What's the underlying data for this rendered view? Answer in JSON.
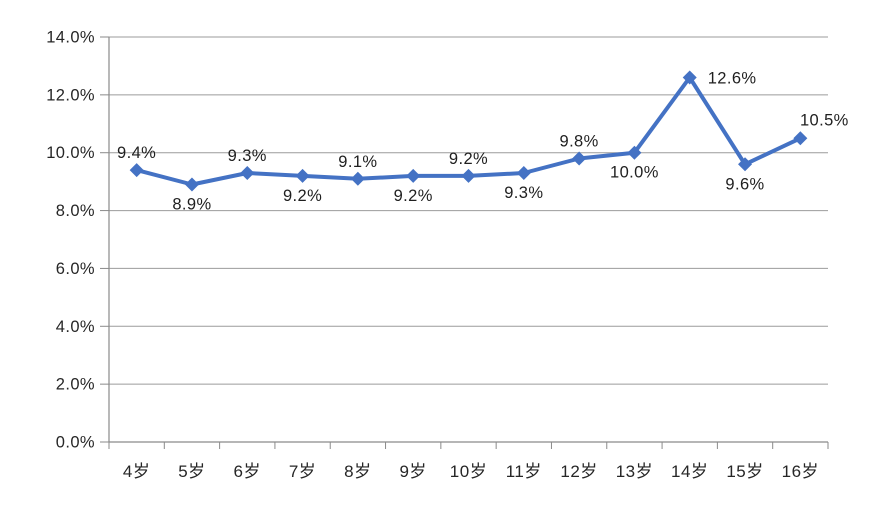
{
  "chart_data": {
    "type": "line",
    "title": "",
    "xlabel": "",
    "ylabel": "",
    "categories": [
      "4岁",
      "5岁",
      "6岁",
      "7岁",
      "8岁",
      "9岁",
      "10岁",
      "11岁",
      "12岁",
      "13岁",
      "14岁",
      "15岁",
      "16岁"
    ],
    "series": [
      {
        "name": "",
        "values": [
          9.4,
          8.9,
          9.3,
          9.2,
          9.1,
          9.2,
          9.2,
          9.3,
          9.8,
          10.0,
          12.6,
          9.6,
          10.5
        ],
        "point_labels": [
          "9.4%",
          "8.9%",
          "9.3%",
          "9.2%",
          "9.1%",
          "9.2%",
          "9.2%",
          "9.3%",
          "9.8%",
          "10.0%",
          "12.6%",
          "9.6%",
          "10.5%"
        ],
        "label_placements": [
          "above",
          "below",
          "above",
          "below",
          "above",
          "below",
          "above",
          "below",
          "above",
          "below",
          "right",
          "below",
          "above-right"
        ]
      }
    ],
    "ylim": [
      0,
      14
    ],
    "ytick_step": 2,
    "ytick_labels": [
      "0.0%",
      "2.0%",
      "4.0%",
      "6.0%",
      "8.0%",
      "10.0%",
      "12.0%",
      "14.0%"
    ],
    "grid": true,
    "legend_position": "none",
    "marker": "diamond",
    "colors": {
      "series": "#4472C4",
      "gridline": "#9B9B9B",
      "axis_line": "#8A8A8A",
      "tick_label": "#262626",
      "data_label": "#1F1F1F",
      "background": "#FFFFFF"
    }
  }
}
